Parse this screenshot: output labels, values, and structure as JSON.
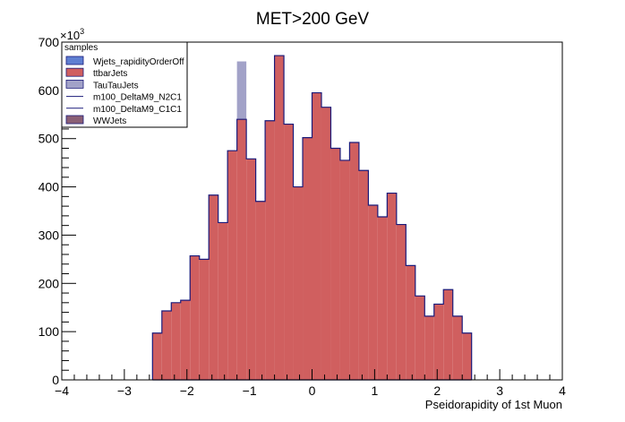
{
  "chart_data": {
    "type": "bar",
    "subtype": "stacked-histogram",
    "title": "MET>200 GeV",
    "xlabel": "Pseidorapidity of 1st Muon",
    "ylabel": "",
    "y_multiplier": "×10",
    "y_multiplier_exp": "3",
    "xlim": [
      -4,
      4
    ],
    "ylim": [
      0,
      700
    ],
    "x_ticks": [
      "−4",
      "−3",
      "−2",
      "−1",
      "0",
      "1",
      "2",
      "3",
      "4"
    ],
    "y_ticks": [
      "0",
      "100",
      "200",
      "300",
      "400",
      "500",
      "600",
      "700"
    ],
    "grid": false,
    "legend": {
      "placement": "top-left",
      "title": "samples",
      "entries": [
        {
          "name": "Wjets_rapidityOrderOff",
          "color": "#5f7fd2",
          "style": "box"
        },
        {
          "name": "ttbarJets",
          "color": "#d05f5f",
          "style": "box"
        },
        {
          "name": "TauTauJets",
          "color": "#a2a2c8",
          "style": "box"
        },
        {
          "name": "m100_DeltaM9_N2C1",
          "color": "#1a1a7a",
          "style": "line"
        },
        {
          "name": "m100_DeltaM9_C1C1",
          "color": "#1a1a7a",
          "style": "line"
        },
        {
          "name": "WWJets",
          "color": "#8a5f75",
          "style": "box"
        }
      ]
    },
    "bin_width": 0.15,
    "bin_edges_start": -2.55,
    "series": [
      {
        "name": "ttbarJets",
        "color": "#d05f5f",
        "values": [
          97,
          143,
          160,
          165,
          257,
          250,
          383,
          326,
          475,
          540,
          458,
          370,
          537,
          672,
          530,
          400,
          502,
          595,
          565,
          480,
          455,
          492,
          434,
          362,
          338,
          387,
          322,
          237,
          174,
          132,
          157,
          187,
          132,
          97
        ]
      },
      {
        "name": "TauTauJets",
        "color": "#a2a2c8",
        "values": [
          0,
          0,
          0,
          0,
          0,
          0,
          0,
          0,
          0,
          120,
          0,
          0,
          0,
          0,
          0,
          0,
          0,
          0,
          0,
          0,
          0,
          0,
          0,
          0,
          0,
          0,
          0,
          0,
          0,
          0,
          0,
          0,
          0,
          0
        ]
      }
    ],
    "outline_color": "#1a1a7a"
  }
}
